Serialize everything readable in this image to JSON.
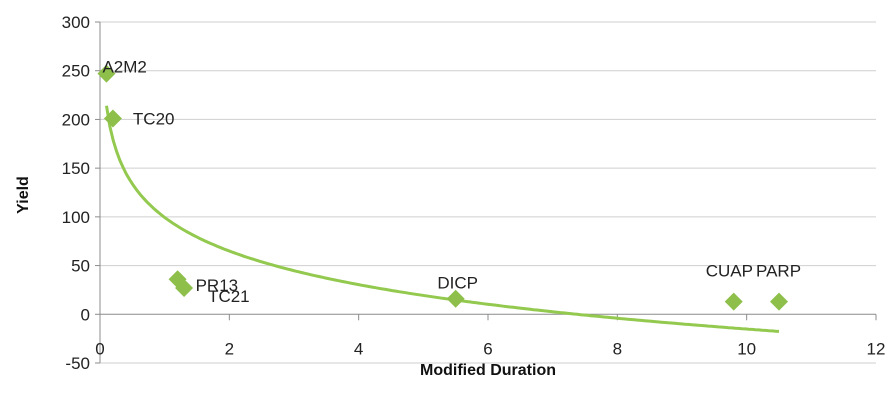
{
  "chart_data": {
    "type": "scatter",
    "title": "",
    "xlabel": "Modified Duration",
    "ylabel": "Yield",
    "xlim": [
      0,
      12
    ],
    "ylim": [
      -50,
      300
    ],
    "xticks": [
      0,
      2,
      4,
      6,
      8,
      10,
      12
    ],
    "yticks": [
      -50,
      0,
      50,
      100,
      150,
      200,
      250,
      300
    ],
    "grid": "horizontal",
    "legend": "none",
    "colors": {
      "points": "#8dbf4a",
      "trendline": "#92c94e",
      "grid": "#cfcfcf",
      "axis": "#8c8c8c"
    },
    "series": [
      {
        "points": [
          {
            "label": "A2M2",
            "x": 0.1,
            "y": 247
          },
          {
            "label": "TC20",
            "x": 0.2,
            "y": 201
          },
          {
            "label": "PR13",
            "x": 1.2,
            "y": 36
          },
          {
            "label": "TC21",
            "x": 1.3,
            "y": 27
          },
          {
            "label": "DICP",
            "x": 5.5,
            "y": 16
          },
          {
            "label": "CUAP",
            "x": 9.8,
            "y": 13
          },
          {
            "label": "PARP",
            "x": 10.5,
            "y": 13
          }
        ]
      }
    ],
    "trendline": {
      "type": "logarithmic",
      "x_range": [
        0.1,
        10.5
      ]
    }
  }
}
